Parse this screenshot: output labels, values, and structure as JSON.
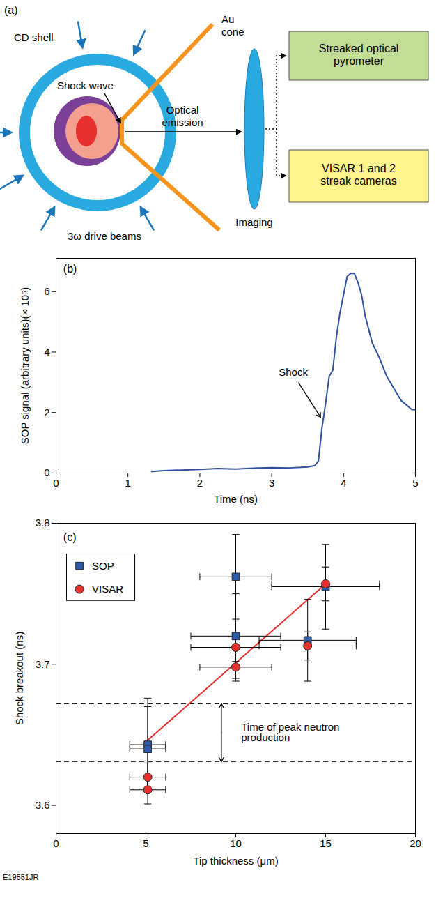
{
  "diagram": {
    "panel_label": "(a)",
    "labels": {
      "shell": "CD shell",
      "shock": "Shock wave",
      "cone": "Au cone",
      "emission": "Optical emission",
      "beams": "3ω drive beams",
      "lens": "Imaging",
      "pyrometer": "Streaked optical pyrometer",
      "visar": "VISAR 1 and 2 streak cameras"
    }
  },
  "chart_data": [
    {
      "type": "line",
      "panel_label": "(b)",
      "xlabel": "Time (ns)",
      "ylabel": "SOP signal (arbitrary units)(× 10⁵)",
      "color": "#2f4fa0",
      "grid": false,
      "xlim": [
        0,
        5
      ],
      "xticks": [
        0,
        1,
        2,
        3,
        4,
        5
      ],
      "ylim": [
        0,
        7.1
      ],
      "yticks": [
        0,
        2,
        4,
        6
      ],
      "x": [
        1.33,
        1.5,
        1.75,
        2.0,
        2.25,
        2.5,
        2.75,
        3.0,
        3.25,
        3.5,
        3.6,
        3.65,
        3.7,
        3.75,
        3.8,
        3.85,
        3.9,
        3.95,
        4.0,
        4.05,
        4.1,
        4.15,
        4.2,
        4.25,
        4.3,
        4.4,
        4.5,
        4.6,
        4.7,
        4.8,
        4.9,
        4.95,
        5.0
      ],
      "values": [
        0.05,
        0.08,
        0.1,
        0.12,
        0.15,
        0.13,
        0.16,
        0.18,
        0.17,
        0.2,
        0.25,
        0.4,
        1.5,
        2.3,
        3.2,
        3.4,
        4.5,
        5.3,
        5.9,
        6.5,
        6.6,
        6.6,
        6.3,
        5.9,
        5.2,
        4.3,
        3.8,
        3.2,
        2.8,
        2.4,
        2.2,
        2.1,
        2.1
      ],
      "annotations": [
        {
          "text": "Shock"
        }
      ]
    },
    {
      "type": "scatter",
      "panel_label": "(c)",
      "xlabel": "Tip thickness (μm)",
      "ylabel": "Shock breakout (ns)",
      "grid": false,
      "legend": "upper left",
      "xlim": [
        0,
        20
      ],
      "xticks": [
        0,
        5,
        10,
        15,
        20
      ],
      "ylim": [
        3.58,
        3.8
      ],
      "yticks": [
        3.6,
        3.7,
        3.8
      ],
      "series": [
        {
          "name": "SOP",
          "color": "#2f5aa8",
          "marker": "square",
          "x": [
            5.1,
            5.1,
            10,
            10,
            14,
            15
          ],
          "values": [
            3.643,
            3.64,
            3.762,
            3.72,
            3.717,
            3.755
          ],
          "xerr": [
            1,
            1,
            2,
            2.5,
            2.7,
            3
          ],
          "yerr": [
            0.033,
            0.03,
            0.03,
            0.03,
            0.029,
            0.03
          ]
        },
        {
          "name": "VISAR",
          "color": "#e8312f",
          "marker": "circle",
          "x": [
            5.1,
            5.1,
            10,
            10,
            14,
            15
          ],
          "values": [
            3.62,
            3.611,
            3.712,
            3.698,
            3.713,
            3.757
          ],
          "xerr": [
            1,
            1,
            2.5,
            2,
            2.7,
            3
          ],
          "yerr": [
            0.01,
            0.01,
            0.01,
            0.01,
            0.01,
            0.012
          ]
        }
      ],
      "fit_line": {
        "x": [
          5,
          15
        ],
        "y": [
          3.645,
          3.757
        ],
        "color": "#e8312f"
      },
      "reference_lines": {
        "values": [
          3.631,
          3.672
        ],
        "line_style": "dashed",
        "label": "Time of peak neutron production"
      }
    }
  ],
  "footer": "E19551JR"
}
